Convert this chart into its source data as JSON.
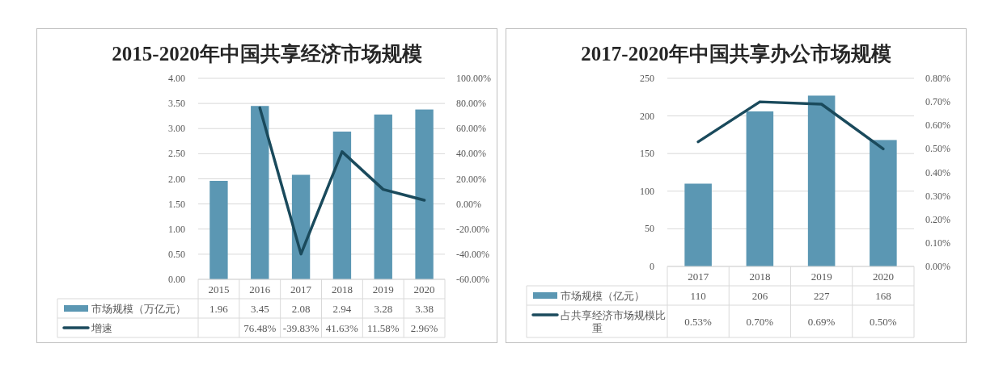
{
  "chart_data": [
    {
      "type": "bar",
      "title": "2015-2020年中国共享经济市场规模",
      "categories": [
        "2015",
        "2016",
        "2017",
        "2018",
        "2019",
        "2020"
      ],
      "series": [
        {
          "name": "市场规模（万亿元）",
          "color": "#5b97b3",
          "values": [
            1.96,
            3.45,
            2.08,
            2.94,
            3.28,
            3.38
          ],
          "value_labels": [
            "1.96",
            "3.45",
            "2.08",
            "2.94",
            "3.28",
            "3.38"
          ]
        },
        {
          "name": "增速",
          "type": "line",
          "axis": "y2",
          "color": "#1a4a5c",
          "values": [
            null,
            76.48,
            -39.83,
            41.63,
            11.58,
            2.96
          ],
          "value_labels": [
            null,
            "76.48%",
            "-39.83%",
            "41.63%",
            "11.58%",
            "2.96%"
          ]
        }
      ],
      "ylim": [
        0,
        4
      ],
      "yticks": [
        {
          "value": 0,
          "label": "0.00"
        },
        {
          "value": 0.5,
          "label": "0.50"
        },
        {
          "value": 1,
          "label": "1.00"
        },
        {
          "value": 1.5,
          "label": "1.50"
        },
        {
          "value": 2,
          "label": "2.00"
        },
        {
          "value": 2.5,
          "label": "2.50"
        },
        {
          "value": 3,
          "label": "3.00"
        },
        {
          "value": 3.5,
          "label": "3.50"
        },
        {
          "value": 4,
          "label": "4.00"
        }
      ],
      "y2lim": [
        -60,
        100
      ],
      "y2ticks": [
        {
          "value": -60,
          "label": "-60.00%"
        },
        {
          "value": -40,
          "label": "-40.00%"
        },
        {
          "value": -20,
          "label": "-20.00%"
        },
        {
          "value": 0,
          "label": "0.00%"
        },
        {
          "value": 20,
          "label": "20.00%"
        },
        {
          "value": 40,
          "label": "40.00%"
        },
        {
          "value": 60,
          "label": "60.00%"
        },
        {
          "value": 80,
          "label": "80.00%"
        },
        {
          "value": 100,
          "label": "100.00%"
        }
      ],
      "grid": "y",
      "legend": "bottom"
    },
    {
      "type": "bar",
      "title": "2017-2020年中国共享办公市场规模",
      "categories": [
        "2017",
        "2018",
        "2019",
        "2020"
      ],
      "series": [
        {
          "name": "市场规模（亿元）",
          "color": "#5b97b3",
          "values": [
            110,
            206,
            227,
            168
          ],
          "value_labels": [
            "110",
            "206",
            "227",
            "168"
          ]
        },
        {
          "name": "占共享经济市场规模比重",
          "type": "line",
          "axis": "y2",
          "color": "#1a4a5c",
          "values": [
            0.53,
            0.7,
            0.69,
            0.5
          ],
          "value_labels": [
            "0.53%",
            "0.70%",
            "0.69%",
            "0.50%"
          ]
        }
      ],
      "ylim": [
        0,
        250
      ],
      "yticks": [
        0,
        50,
        100,
        150,
        200,
        250
      ],
      "y2lim": [
        0,
        0.8
      ],
      "y2ticks": [
        {
          "value": 0,
          "label": "0.00%"
        },
        {
          "value": 0.1,
          "label": "0.10%"
        },
        {
          "value": 0.2,
          "label": "0.20%"
        },
        {
          "value": 0.3,
          "label": "0.30%"
        },
        {
          "value": 0.4,
          "label": "0.40%"
        },
        {
          "value": 0.5,
          "label": "0.50%"
        },
        {
          "value": 0.6,
          "label": "0.60%"
        },
        {
          "value": 0.7,
          "label": "0.70%"
        },
        {
          "value": 0.8,
          "label": "0.80%"
        }
      ],
      "grid": "y",
      "legend": "bottom"
    }
  ]
}
